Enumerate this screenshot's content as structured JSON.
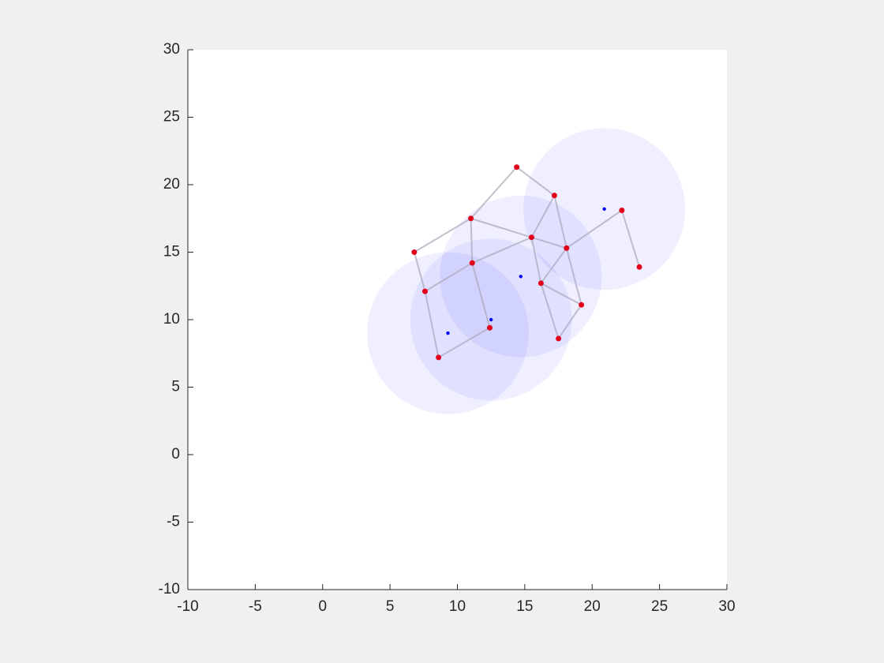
{
  "chart_data": {
    "type": "network",
    "xlim": [
      -10,
      30
    ],
    "ylim": [
      -10,
      30
    ],
    "xticks": [
      -10,
      -5,
      0,
      5,
      10,
      15,
      20,
      25,
      30
    ],
    "yticks": [
      -10,
      -5,
      0,
      5,
      10,
      15,
      20,
      25,
      30
    ],
    "nodes": {
      "color": "#e3001b",
      "x": [
        14.4,
        17.2,
        11.0,
        15.5,
        18.1,
        6.8,
        11.1,
        22.2,
        23.5,
        16.2,
        7.6,
        19.2,
        12.4,
        17.5,
        8.6
      ],
      "y": [
        21.3,
        19.2,
        17.5,
        16.1,
        15.3,
        15.0,
        14.2,
        18.1,
        13.9,
        12.7,
        12.1,
        11.1,
        9.4,
        8.6,
        7.2
      ]
    },
    "edges": [
      [
        0,
        2
      ],
      [
        0,
        1
      ],
      [
        1,
        3
      ],
      [
        1,
        4
      ],
      [
        2,
        3
      ],
      [
        2,
        5
      ],
      [
        2,
        6
      ],
      [
        3,
        6
      ],
      [
        3,
        9
      ],
      [
        3,
        4
      ],
      [
        4,
        9
      ],
      [
        4,
        7
      ],
      [
        4,
        11
      ],
      [
        7,
        8
      ],
      [
        5,
        10
      ],
      [
        6,
        10
      ],
      [
        6,
        12
      ],
      [
        10,
        14
      ],
      [
        14,
        12
      ],
      [
        9,
        11
      ],
      [
        9,
        13
      ],
      [
        11,
        13
      ]
    ],
    "edge_color": "#a9a6b8",
    "centers": {
      "color": "#0000ee",
      "area_color": "#5050ff",
      "x": [
        9.3,
        12.5,
        14.7,
        20.9
      ],
      "y": [
        9.0,
        10.0,
        13.2,
        18.2
      ],
      "radii": [
        6,
        6,
        6,
        6
      ]
    }
  }
}
